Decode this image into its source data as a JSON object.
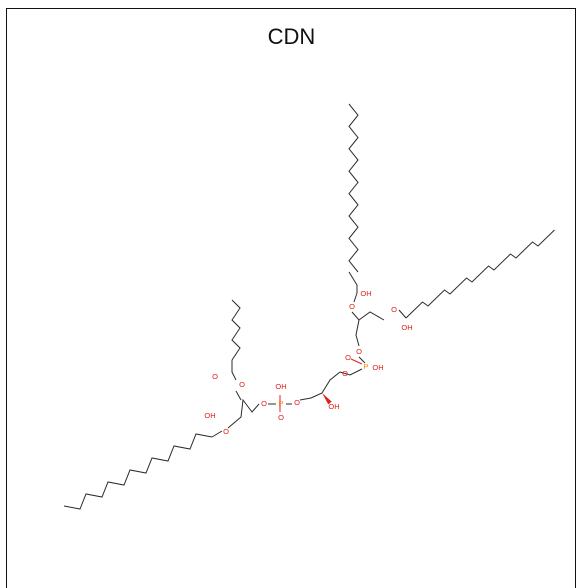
{
  "figure": {
    "title": "CDN",
    "atom_labels": [
      "OH",
      "O",
      "O",
      "P",
      "O",
      "O",
      "OH"
    ],
    "colors": {
      "carbon_bond": "#2b2b2b",
      "oxygen": "#e0201a",
      "phosphorus": "#ff8000",
      "stereo_wedge": "#e0201a"
    }
  }
}
